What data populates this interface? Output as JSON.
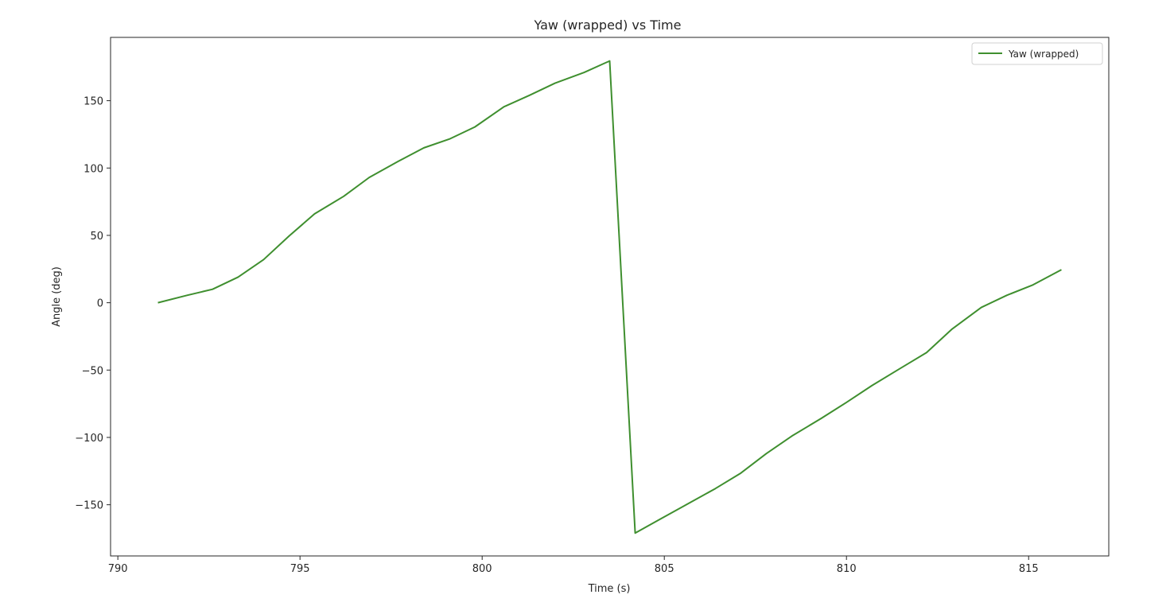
{
  "chart_data": {
    "type": "line",
    "title": "Yaw (wrapped) vs Time",
    "xlabel": "Time (s)",
    "ylabel": "Angle (deg)",
    "xlim": [
      789.8,
      817.2
    ],
    "ylim": [
      -188,
      197
    ],
    "xticks": [
      790,
      795,
      800,
      805,
      810,
      815
    ],
    "xtick_labels": [
      "790",
      "795",
      "800",
      "805",
      "810",
      "815"
    ],
    "yticks": [
      150,
      100,
      50,
      0,
      -50,
      -100,
      -150
    ],
    "ytick_labels": [
      "150",
      "100",
      "50",
      "0",
      "−50",
      "−100",
      "−150"
    ],
    "grid": false,
    "legend": "top-right",
    "series": [
      {
        "name": "Yaw (wrapped)",
        "color": "#3f8f2f",
        "x": [
          791.1,
          791.9,
          792.6,
          793.3,
          794.0,
          794.7,
          795.4,
          796.2,
          796.9,
          797.7,
          798.4,
          799.1,
          799.8,
          800.6,
          801.3,
          802.0,
          802.8,
          803.5,
          804.2,
          804.9,
          805.6,
          806.4,
          807.1,
          807.8,
          808.5,
          809.3,
          810.0,
          810.7,
          811.4,
          812.2,
          812.9,
          813.7,
          814.4,
          815.1,
          815.9
        ],
        "y": [
          0,
          5.5,
          10,
          19,
          32,
          49.5,
          66,
          79,
          93,
          105,
          115,
          121.5,
          130.5,
          145.5,
          154,
          163,
          171,
          179.5,
          -171,
          -160.5,
          -150,
          -138,
          -126.5,
          -112,
          -99,
          -86,
          -74,
          -61.5,
          -50,
          -37,
          -19.5,
          -3.5,
          5.5,
          13,
          24.5
        ]
      }
    ]
  }
}
